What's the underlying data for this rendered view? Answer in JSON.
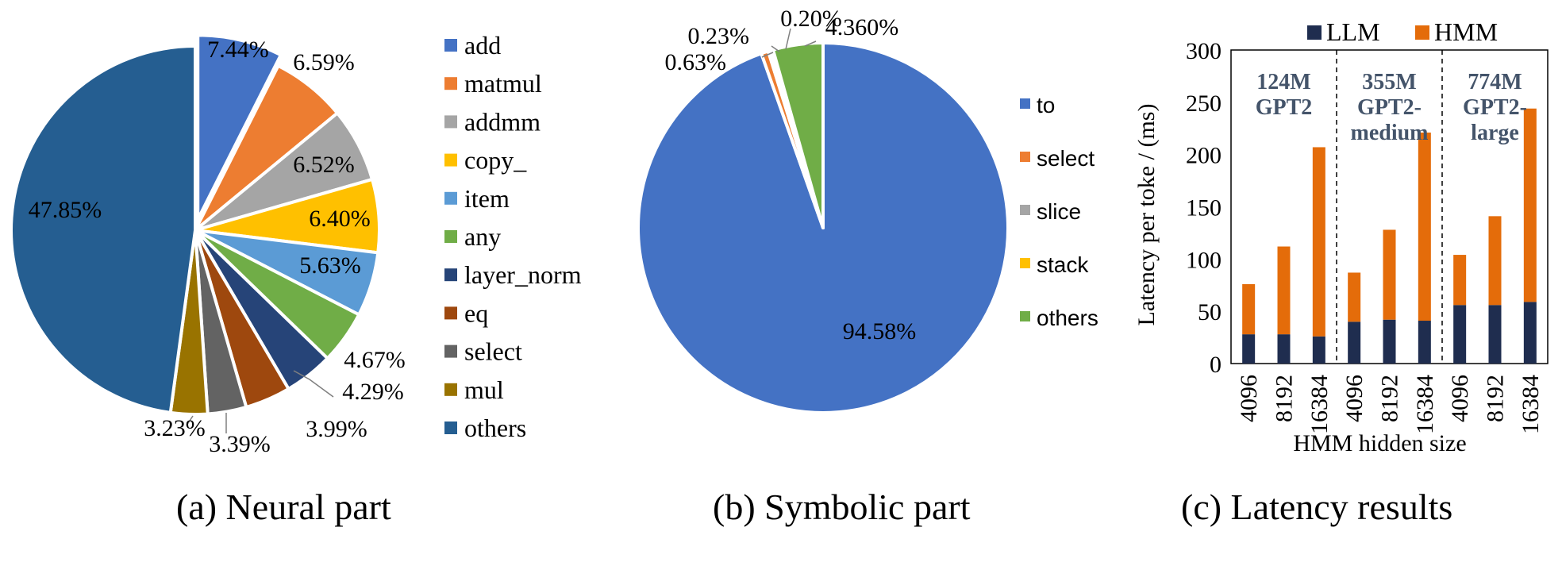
{
  "chart_data": [
    {
      "type": "pie",
      "caption": "(a) Neural part",
      "labels": [
        "add",
        "matmul",
        "addmm",
        "copy_",
        "item",
        "any",
        "layer_norm",
        "eq",
        "select",
        "mul",
        "others"
      ],
      "values": [
        7.44,
        6.59,
        6.52,
        6.4,
        5.63,
        4.67,
        4.29,
        3.99,
        3.39,
        3.23,
        47.85
      ],
      "value_labels": [
        "7.44%",
        "6.59%",
        "6.52%",
        "6.40%",
        "5.63%",
        "4.67%",
        "4.29%",
        "3.99%",
        "3.39%",
        "3.23%",
        "47.85%"
      ],
      "colors": [
        "#4472C4",
        "#ED7D31",
        "#A5A5A5",
        "#FFC000",
        "#5B9BD5",
        "#70AD47",
        "#264478",
        "#9E480E",
        "#636363",
        "#997300",
        "#255E91"
      ],
      "exploded": "add",
      "legend": "right"
    },
    {
      "type": "pie",
      "caption": "(b) Symbolic part",
      "labels": [
        "to",
        "select",
        "slice",
        "stack",
        "others"
      ],
      "values": [
        94.58,
        0.63,
        0.23,
        0.2,
        4.36
      ],
      "value_labels": [
        "94.58%",
        "0.63%",
        "0.23%",
        "0.20%",
        "4.360%"
      ],
      "colors": [
        "#4472C4",
        "#ED7D31",
        "#A5A5A5",
        "#FFC000",
        "#70AD47"
      ],
      "legend": "right"
    },
    {
      "type": "bar",
      "stacked": true,
      "caption": "(c) Latency results",
      "xlabel": "HMM hidden size",
      "ylabel": "Latency per toke / (ms)",
      "categories": [
        "4096",
        "8192",
        "16384",
        "4096",
        "8192",
        "16384",
        "4096",
        "8192",
        "16384"
      ],
      "groups": [
        {
          "label_line1": "124M",
          "label_line2": "GPT2",
          "label_line3": ""
        },
        {
          "label_line1": "355M",
          "label_line2": "GPT2-",
          "label_line3": "medium"
        },
        {
          "label_line1": "774M",
          "label_line2": "GPT2-",
          "label_line3": "large"
        }
      ],
      "series": [
        {
          "name": "LLM",
          "color": "#1F2D4F",
          "values": [
            28,
            28,
            26,
            40,
            42,
            41,
            56,
            56,
            59
          ]
        },
        {
          "name": "HMM",
          "color": "#E46C0A",
          "values": [
            48,
            84,
            181,
            47,
            86,
            180,
            48,
            85,
            185
          ]
        }
      ],
      "ylim": [
        0,
        300
      ],
      "yticks": [
        "0",
        "50",
        "100",
        "150",
        "200",
        "250",
        "300"
      ],
      "legend": "top",
      "grid": false
    }
  ]
}
